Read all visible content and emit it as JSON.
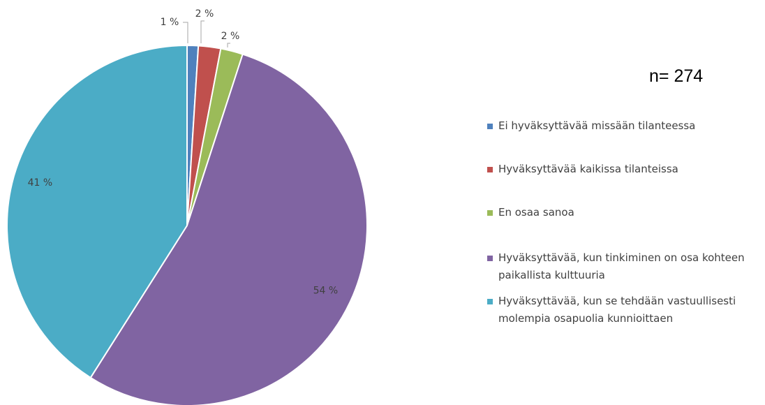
{
  "chart_data": {
    "type": "pie",
    "annotation": "n= 274",
    "categories": [
      "Ei hyväksyttävää missään tilanteessa",
      "Hyväksyttävää kaikissa tilanteissa",
      "En osaa sanoa",
      "Hyväksyttävää, kun tinkiminen on osa kohteen paikallista kulttuuria",
      "Hyväksyttävää, kun se tehdään vastuullisesti molempia osapuolia kunnioittaen"
    ],
    "values": [
      1,
      2,
      2,
      54,
      41
    ],
    "value_labels": [
      "1 %",
      "2 %",
      "2 %",
      "54 %",
      "41 %"
    ],
    "colors": [
      "#4f81bd",
      "#c0504d",
      "#9bbb59",
      "#8064a2",
      "#4bacc6"
    ],
    "legend": "right"
  }
}
